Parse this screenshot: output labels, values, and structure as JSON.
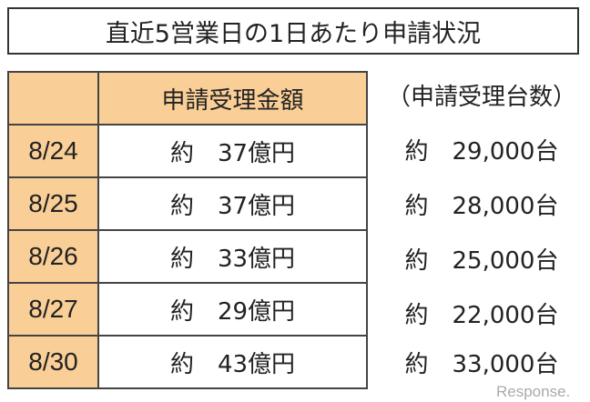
{
  "title": "直近5営業日の1日あたり申請状況",
  "header": {
    "date": "",
    "amount": "申請受理金額",
    "units": "（申請受理台数）"
  },
  "rows": [
    {
      "date": "8/24",
      "amount": "約　37億円",
      "units": "約　29,000台"
    },
    {
      "date": "8/25",
      "amount": "約　37億円",
      "units": "約　28,000台"
    },
    {
      "date": "8/26",
      "amount": "約　33億円",
      "units": "約　25,000台"
    },
    {
      "date": "8/27",
      "amount": "約　29億円",
      "units": "約　22,000台"
    },
    {
      "date": "8/30",
      "amount": "約　43億円",
      "units": "約　33,000台"
    }
  ],
  "watermark": "Response.",
  "colors": {
    "header_fill": "#f9cf97"
  }
}
